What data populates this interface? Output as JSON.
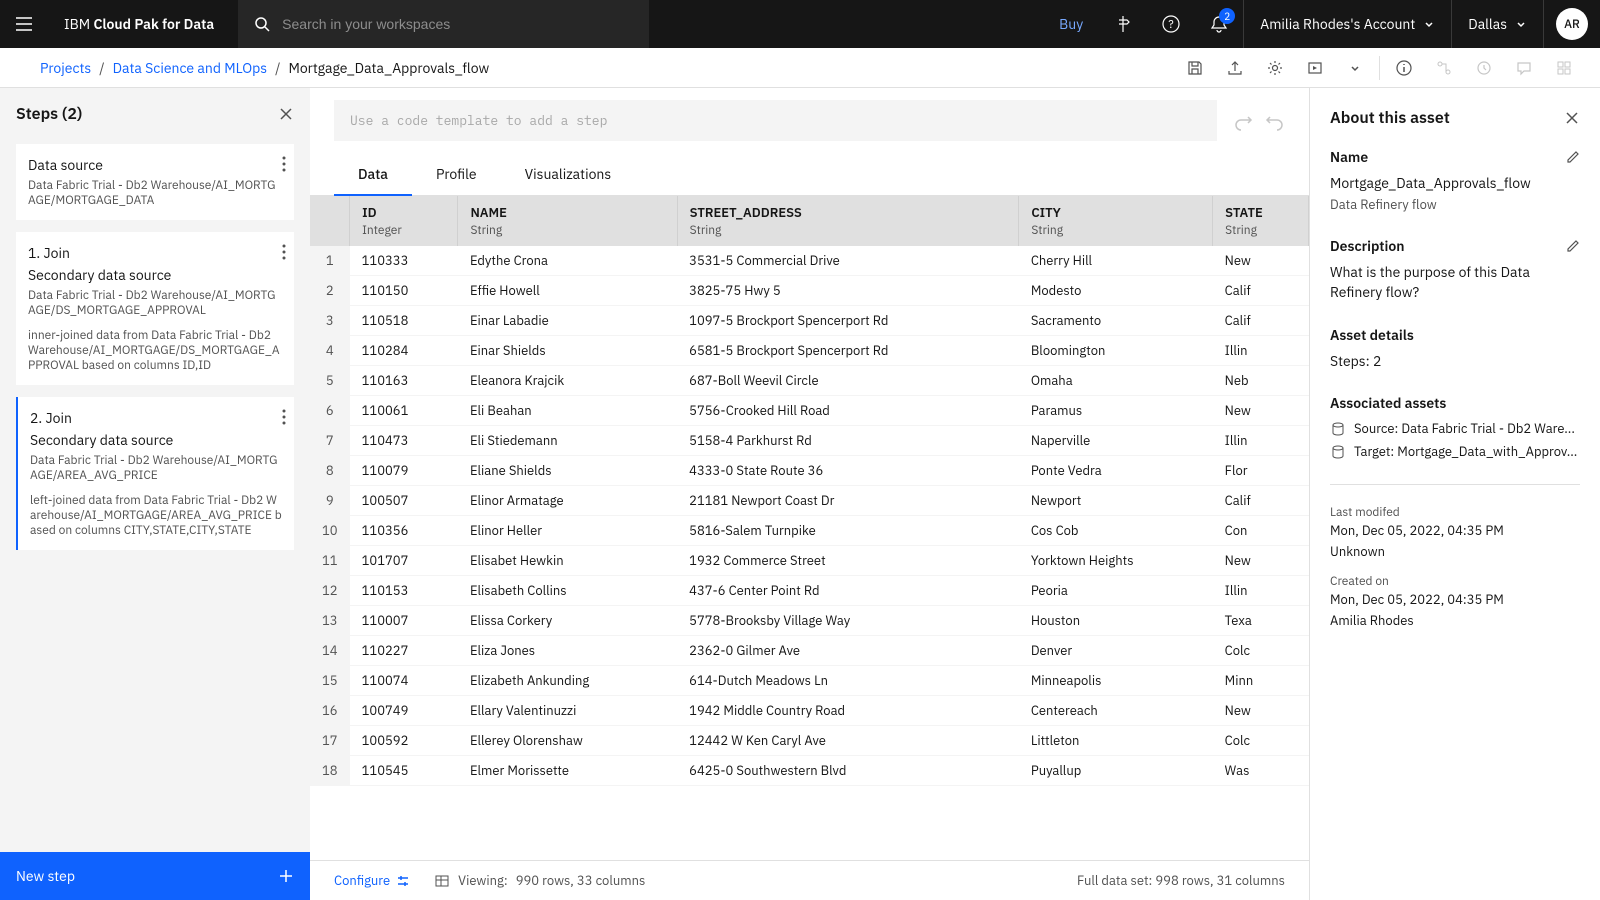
{
  "header": {
    "brand_prefix": "IBM",
    "brand_name": "Cloud Pak for Data",
    "search_placeholder": "Search in your workspaces",
    "buy": "Buy",
    "notification_count": "2",
    "account_name": "Amilia Rhodes's Account",
    "region": "Dallas",
    "avatar_initials": "AR"
  },
  "breadcrumb": {
    "items": [
      "Projects",
      "Data Science and MLOps"
    ],
    "current": "Mortgage_Data_Approvals_flow"
  },
  "steps_panel": {
    "title": "Steps (2)",
    "new_step": "New step",
    "steps": [
      {
        "title": "Data source",
        "subtitle": "Data Fabric Trial - Db2 Warehouse/AI_MORTGAGE/MORTGAGE_DATA",
        "desc": ""
      },
      {
        "title": "1. Join",
        "subheader": "Secondary data source",
        "subtitle": "Data Fabric Trial - Db2 Warehouse/AI_MORTGAGE/DS_MORTGAGE_APPROVAL",
        "desc": "inner-joined data from Data Fabric Trial - Db2 Warehouse/AI_MORTGAGE/DS_MORTGAGE_APPROVAL based on columns ID,ID"
      },
      {
        "title": "2. Join",
        "subheader": "Secondary data source",
        "subtitle": "Data Fabric Trial - Db2 Warehouse/AI_MORTGAGE/AREA_AVG_PRICE",
        "desc": "left-joined data from Data Fabric Trial - Db2 Warehouse/AI_MORTGAGE/AREA_AVG_PRICE based on columns CITY,STATE,CITY,STATE"
      }
    ]
  },
  "center": {
    "code_placeholder": "Use a code template to add a step",
    "tabs": [
      "Data",
      "Profile",
      "Visualizations"
    ],
    "columns": [
      {
        "name": "ID",
        "type": "Integer"
      },
      {
        "name": "NAME",
        "type": "String"
      },
      {
        "name": "STREET_ADDRESS",
        "type": "String"
      },
      {
        "name": "CITY",
        "type": "String"
      },
      {
        "name": "STATE",
        "type": "String"
      }
    ],
    "rows": [
      [
        "110333",
        "Edythe Crona",
        "3531-5 Commercial Drive",
        "Cherry Hill",
        "New"
      ],
      [
        "110150",
        "Effie Howell",
        "3825-75 Hwy 5",
        "Modesto",
        "Calif"
      ],
      [
        "110518",
        "Einar Labadie",
        "1097-5 Brockport Spencerport Rd",
        "Sacramento",
        "Calif"
      ],
      [
        "110284",
        "Einar Shields",
        "6581-5 Brockport Spencerport Rd",
        "Bloomington",
        "Illin"
      ],
      [
        "110163",
        "Eleanora Krajcik",
        "687-Boll Weevil Circle",
        "Omaha",
        "Neb"
      ],
      [
        "110061",
        "Eli Beahan",
        "5756-Crooked Hill Road",
        "Paramus",
        "New"
      ],
      [
        "110473",
        "Eli Stiedemann",
        "5158-4 Parkhurst Rd",
        "Naperville",
        "Illin"
      ],
      [
        "110079",
        "Eliane Shields",
        "4333-0 State Route 36",
        "Ponte Vedra",
        "Flor"
      ],
      [
        "100507",
        "Elinor Armatage",
        "21181 Newport Coast Dr",
        "Newport",
        "Calif"
      ],
      [
        "110356",
        "Elinor Heller",
        "5816-Salem Turnpike",
        "Cos Cob",
        "Con"
      ],
      [
        "101707",
        "Elisabet Hewkin",
        "1932 Commerce Street",
        "Yorktown Heights",
        "New"
      ],
      [
        "110153",
        "Elisabeth Collins",
        "437-6 Center Point Rd",
        "Peoria",
        "Illin"
      ],
      [
        "110007",
        "Elissa Corkery",
        "5778-Brooksby Village Way",
        "Houston",
        "Texa"
      ],
      [
        "110227",
        "Eliza Jones",
        "2362-0 Gilmer Ave",
        "Denver",
        "Colc"
      ],
      [
        "110074",
        "Elizabeth Ankunding",
        "614-Dutch Meadows Ln",
        "Minneapolis",
        "Minn"
      ],
      [
        "100749",
        "Ellary Valentinuzzi",
        "1942 Middle Country Road",
        "Centereach",
        "New"
      ],
      [
        "100592",
        "Ellerey Olorenshaw",
        "12442 W Ken Caryl Ave",
        "Littleton",
        "Colc"
      ],
      [
        "110545",
        "Elmer Morissette",
        "6425-0 Southwestern Blvd",
        "Puyallup",
        "Was"
      ]
    ],
    "configure": "Configure",
    "viewing_label": "Viewing:",
    "viewing_value": "990 rows, 33 columns",
    "full_set": "Full data set:  998 rows, 31 columns"
  },
  "info_panel": {
    "title": "About this asset",
    "name_label": "Name",
    "name_value": "Mortgage_Data_Approvals_flow",
    "name_sub": "Data Refinery flow",
    "desc_label": "Description",
    "desc_value": "What is the purpose of this Data Refinery flow?",
    "details_label": "Asset details",
    "steps_count": "Steps: 2",
    "assoc_label": "Associated assets",
    "assoc_source": "Source: Data Fabric Trial - Db2 Ware...",
    "assoc_target": "Target: Mortgage_Data_with_Approv...",
    "last_mod_label": "Last modifed",
    "last_mod_value": "Mon, Dec 05, 2022, 04:35 PM",
    "last_mod_user": "Unknown",
    "created_label": "Created on",
    "created_value": "Mon, Dec 05, 2022, 04:35 PM",
    "created_user": "Amilia Rhodes"
  }
}
